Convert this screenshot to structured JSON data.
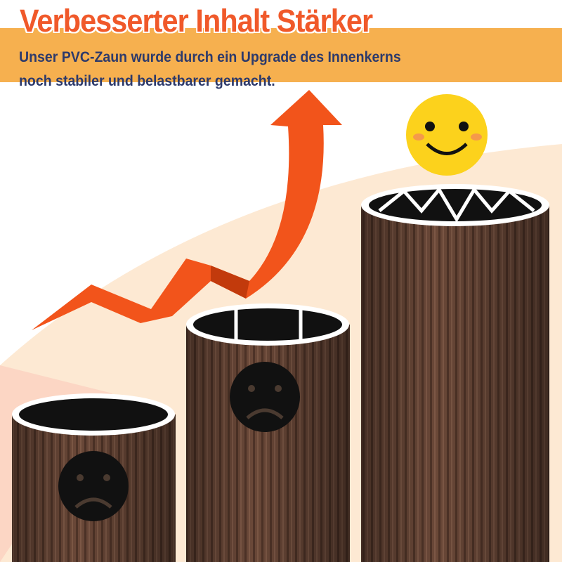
{
  "header": {
    "title": "Verbesserter Inhalt Stärker",
    "subtitle_line1": "Unser PVC-Zaun wurde durch ein Upgrade des Innenkerns",
    "subtitle_line2": "noch stabiler und belastbarer gemacht."
  },
  "colors": {
    "band": "#f6b04f",
    "title": "#f0592a",
    "subtitle": "#2d3a6b",
    "post": "#6b4a3a",
    "arrow": "#f2541b",
    "smiley": "#fcd21c"
  },
  "icons": [
    "upward-trend-arrow-icon",
    "sad-face-icon",
    "sad-face-icon",
    "happy-face-icon"
  ]
}
